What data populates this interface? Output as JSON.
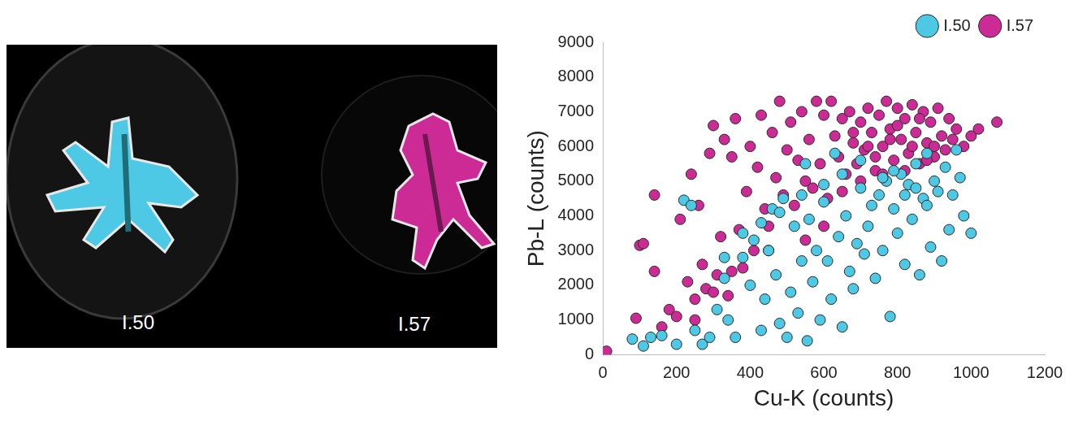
{
  "chart_data": {
    "type": "scatter",
    "x_label": "Cu-K (counts)",
    "y_label": "Pb-L (counts)",
    "xlim": [
      0,
      1200
    ],
    "xticks": [
      0,
      200,
      400,
      600,
      800,
      1000,
      1200
    ],
    "ylim": [
      0,
      9000
    ],
    "yticks": [
      0,
      1000,
      2000,
      3000,
      4000,
      5000,
      6000,
      7000,
      8000,
      9000
    ],
    "grid": false,
    "legend": "top-right",
    "series": [
      {
        "name": "I.50",
        "color": "#4dc9e6",
        "marker": "circle",
        "x": [
          80,
          110,
          130,
          160,
          200,
          220,
          240,
          250,
          270,
          290,
          310,
          330,
          340,
          360,
          380,
          400,
          410,
          430,
          440,
          450,
          460,
          470,
          480,
          490,
          500,
          510,
          520,
          530,
          540,
          550,
          555,
          560,
          570,
          580,
          590,
          600,
          610,
          620,
          630,
          640,
          650,
          660,
          670,
          680,
          690,
          700,
          710,
          720,
          730,
          740,
          750,
          760,
          770,
          780,
          790,
          800,
          810,
          820,
          830,
          840,
          850,
          860,
          870,
          880,
          890,
          900,
          910,
          920,
          930,
          940,
          950,
          960,
          970,
          980,
          1000,
          880,
          850,
          820,
          790,
          760,
          700,
          650,
          600,
          540,
          480,
          430,
          380,
          330
        ],
        "values": [
          450,
          250,
          500,
          550,
          300,
          4450,
          4300,
          700,
          300,
          500,
          1300,
          2200,
          1000,
          500,
          2800,
          2000,
          3300,
          700,
          1600,
          3000,
          4200,
          2300,
          900,
          4500,
          500,
          1800,
          3700,
          1200,
          2700,
          5500,
          400,
          3900,
          2100,
          3000,
          1000,
          4400,
          2700,
          1600,
          5800,
          3400,
          800,
          4000,
          2400,
          1900,
          3200,
          4800,
          2900,
          3700,
          4300,
          2200,
          4600,
          3000,
          5000,
          1100,
          4200,
          3500,
          5200,
          2600,
          4900,
          3900,
          5500,
          2300,
          4500,
          5800,
          3100,
          5000,
          4700,
          2700,
          5400,
          3600,
          4600,
          5900,
          5100,
          4000,
          3500,
          4300,
          4800,
          4600,
          5300,
          5100,
          5600,
          5200,
          4900,
          4600,
          4100,
          3800,
          3500,
          2800
        ]
      },
      {
        "name": "I.57",
        "color": "#cc2b96",
        "marker": "circle",
        "x": [
          10,
          90,
          100,
          110,
          140,
          140,
          160,
          180,
          200,
          210,
          230,
          240,
          250,
          260,
          270,
          280,
          290,
          300,
          310,
          320,
          330,
          340,
          350,
          360,
          370,
          380,
          390,
          400,
          410,
          420,
          430,
          440,
          450,
          460,
          470,
          480,
          490,
          500,
          510,
          520,
          530,
          540,
          550,
          560,
          570,
          580,
          590,
          600,
          610,
          620,
          630,
          640,
          650,
          660,
          670,
          680,
          690,
          700,
          710,
          720,
          730,
          740,
          750,
          760,
          770,
          780,
          790,
          800,
          810,
          820,
          830,
          840,
          850,
          860,
          870,
          880,
          890,
          900,
          910,
          920,
          930,
          940,
          950,
          960,
          980,
          1000,
          1020,
          1070,
          760,
          820,
          880,
          700,
          650,
          600,
          550,
          450,
          350,
          300,
          250,
          720,
          780,
          840,
          900,
          860,
          800,
          740,
          680
        ],
        "values": [
          100,
          1050,
          3150,
          3200,
          2400,
          4600,
          800,
          1300,
          1100,
          3900,
          2100,
          5200,
          1600,
          4300,
          2600,
          1900,
          5800,
          6600,
          2300,
          3400,
          6200,
          1700,
          5700,
          6800,
          3600,
          2500,
          4700,
          6000,
          3000,
          5400,
          6900,
          4200,
          3700,
          6400,
          5100,
          7300,
          4600,
          5900,
          6700,
          4300,
          5600,
          7000,
          5000,
          6200,
          4800,
          7300,
          5500,
          6900,
          4500,
          7300,
          6300,
          5700,
          6800,
          5200,
          7000,
          6100,
          5500,
          6700,
          5900,
          7100,
          6400,
          5300,
          6900,
          6000,
          7300,
          6500,
          5600,
          7100,
          6200,
          6800,
          5800,
          7200,
          6400,
          5500,
          7000,
          6100,
          6700,
          5700,
          7100,
          6300,
          5900,
          6800,
          6200,
          6500,
          6000,
          6300,
          6500,
          6700,
          5200,
          5300,
          5600,
          5000,
          4700,
          3700,
          3300,
          3000,
          2400,
          1800,
          1000,
          6000,
          6200,
          6000,
          6000,
          6800,
          6600,
          5700,
          6400
        ]
      }
    ]
  },
  "image": {
    "labels": [
      "I.50",
      "I.57"
    ]
  }
}
